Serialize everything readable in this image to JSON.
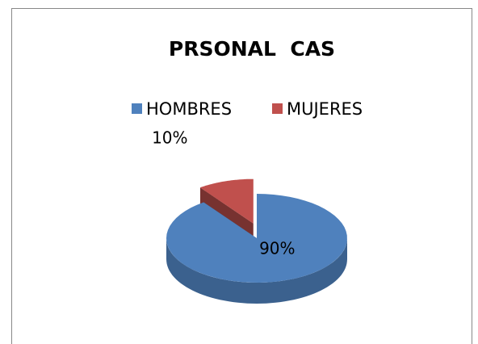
{
  "chart_data": {
    "type": "pie",
    "title": "PRSONAL  CAS",
    "categories": [
      "HOMBRES",
      "MUJERES"
    ],
    "values": [
      90,
      10
    ],
    "value_labels": [
      "90%",
      "10%"
    ],
    "colors": [
      "#4f81bd",
      "#c0504d"
    ],
    "legend": "top"
  }
}
